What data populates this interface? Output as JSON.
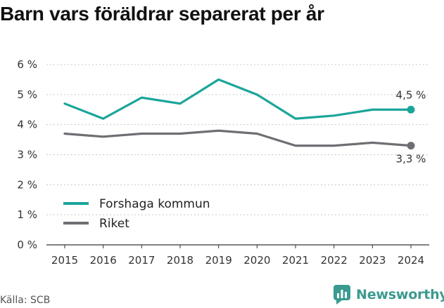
{
  "chart_data": {
    "type": "line",
    "title": "Barn vars föräldrar separerat per år",
    "x": [
      "2015",
      "2016",
      "2017",
      "2018",
      "2019",
      "2020",
      "2021",
      "2022",
      "2023",
      "2024"
    ],
    "y_ticks": [
      "0 %",
      "1 %",
      "2 %",
      "3 %",
      "4 %",
      "5 %",
      "6 %"
    ],
    "ylim": [
      0,
      6
    ],
    "grid": "horizontal-dashed",
    "legend_position": "bottom-left",
    "series": [
      {
        "name": "Forshaga kommun",
        "color": "#1aa59a",
        "values": [
          4.7,
          4.2,
          4.9,
          4.7,
          5.5,
          5.0,
          4.2,
          4.3,
          4.5,
          4.5
        ],
        "end_label": "4,5 %"
      },
      {
        "name": "Riket",
        "color": "#6e6e73",
        "values": [
          3.7,
          3.6,
          3.7,
          3.7,
          3.8,
          3.7,
          3.3,
          3.3,
          3.4,
          3.3
        ],
        "end_label": "3,3 %"
      }
    ]
  },
  "source": "Källa: SCB",
  "brand": {
    "name": "Newsworthy",
    "icon": "newsworthy-logo-icon",
    "color": "#3b9a8f"
  }
}
